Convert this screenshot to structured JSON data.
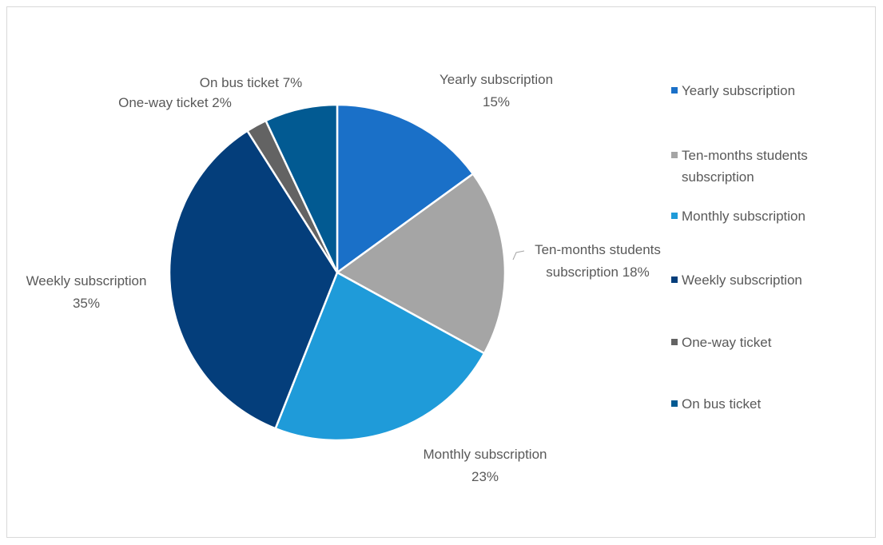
{
  "chart_data": {
    "type": "pie",
    "categories": [
      "Yearly subscription",
      "Ten-months students subscription",
      "Monthly subscription",
      "Weekly subscription",
      "One-way ticket",
      "On bus ticket"
    ],
    "values": [
      15,
      18,
      23,
      35,
      2,
      7
    ],
    "value_labels": [
      "15%",
      "18%",
      "23%",
      "35%",
      "2%",
      "7%"
    ],
    "colors": [
      "#1a70c8",
      "#a5a5a5",
      "#1f9bd9",
      "#043e7b",
      "#636363",
      "#025a92"
    ],
    "legend": "right"
  }
}
